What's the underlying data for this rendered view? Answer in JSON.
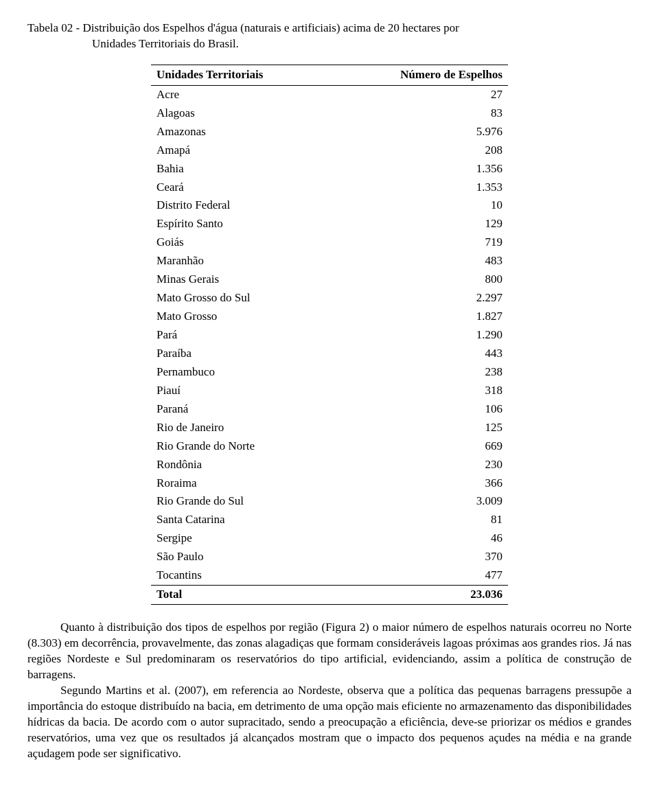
{
  "caption": {
    "line1": "Tabela 02 - Distribuição dos Espelhos d'água (naturais e artificiais) acima de 20 hectares por",
    "line2": "Unidades Territoriais do Brasil."
  },
  "table": {
    "headers": [
      "Unidades Territoriais",
      "Número de Espelhos"
    ],
    "rows": [
      [
        "Acre",
        "27"
      ],
      [
        "Alagoas",
        "83"
      ],
      [
        "Amazonas",
        "5.976"
      ],
      [
        "Amapá",
        "208"
      ],
      [
        "Bahia",
        "1.356"
      ],
      [
        "Ceará",
        "1.353"
      ],
      [
        "Distrito Federal",
        "10"
      ],
      [
        "Espírito Santo",
        "129"
      ],
      [
        "Goiás",
        "719"
      ],
      [
        "Maranhão",
        "483"
      ],
      [
        "Minas Gerais",
        "800"
      ],
      [
        "Mato Grosso do Sul",
        "2.297"
      ],
      [
        "Mato Grosso",
        "1.827"
      ],
      [
        "Pará",
        "1.290"
      ],
      [
        "Paraíba",
        "443"
      ],
      [
        "Pernambuco",
        "238"
      ],
      [
        "Piauí",
        "318"
      ],
      [
        "Paraná",
        "106"
      ],
      [
        "Rio de Janeiro",
        "125"
      ],
      [
        "Rio Grande do Norte",
        "669"
      ],
      [
        "Rondônia",
        "230"
      ],
      [
        "Roraima",
        "366"
      ],
      [
        "Rio Grande do Sul",
        "3.009"
      ],
      [
        "Santa Catarina",
        "81"
      ],
      [
        "Sergipe",
        "46"
      ],
      [
        "São Paulo",
        "370"
      ],
      [
        "Tocantins",
        "477"
      ]
    ],
    "total": [
      "Total",
      "23.036"
    ]
  },
  "paragraphs": [
    "Quanto à distribuição dos tipos de espelhos por região (Figura 2) o maior número de espelhos naturais ocorreu no Norte (8.303) em decorrência, provavelmente, das zonas alagadiças que formam consideráveis lagoas próximas aos grandes rios. Já nas regiões Nordeste e Sul predominaram os reservatórios do tipo artificial, evidenciando, assim a política de construção de barragens.",
    "Segundo Martins et al. (2007), em referencia ao Nordeste, observa que a política das pequenas barragens pressupõe a importância do estoque distribuído na bacia, em detrimento de uma opção mais eficiente no armazenamento das disponibilidades hídricas da bacia. De acordo com o autor supracitado, sendo a preocupação a eficiência, deve-se priorizar os médios e grandes reservatórios, uma vez que os resultados já alcançados mostram que o impacto dos pequenos açudes na média e na grande açudagem pode ser significativo."
  ]
}
